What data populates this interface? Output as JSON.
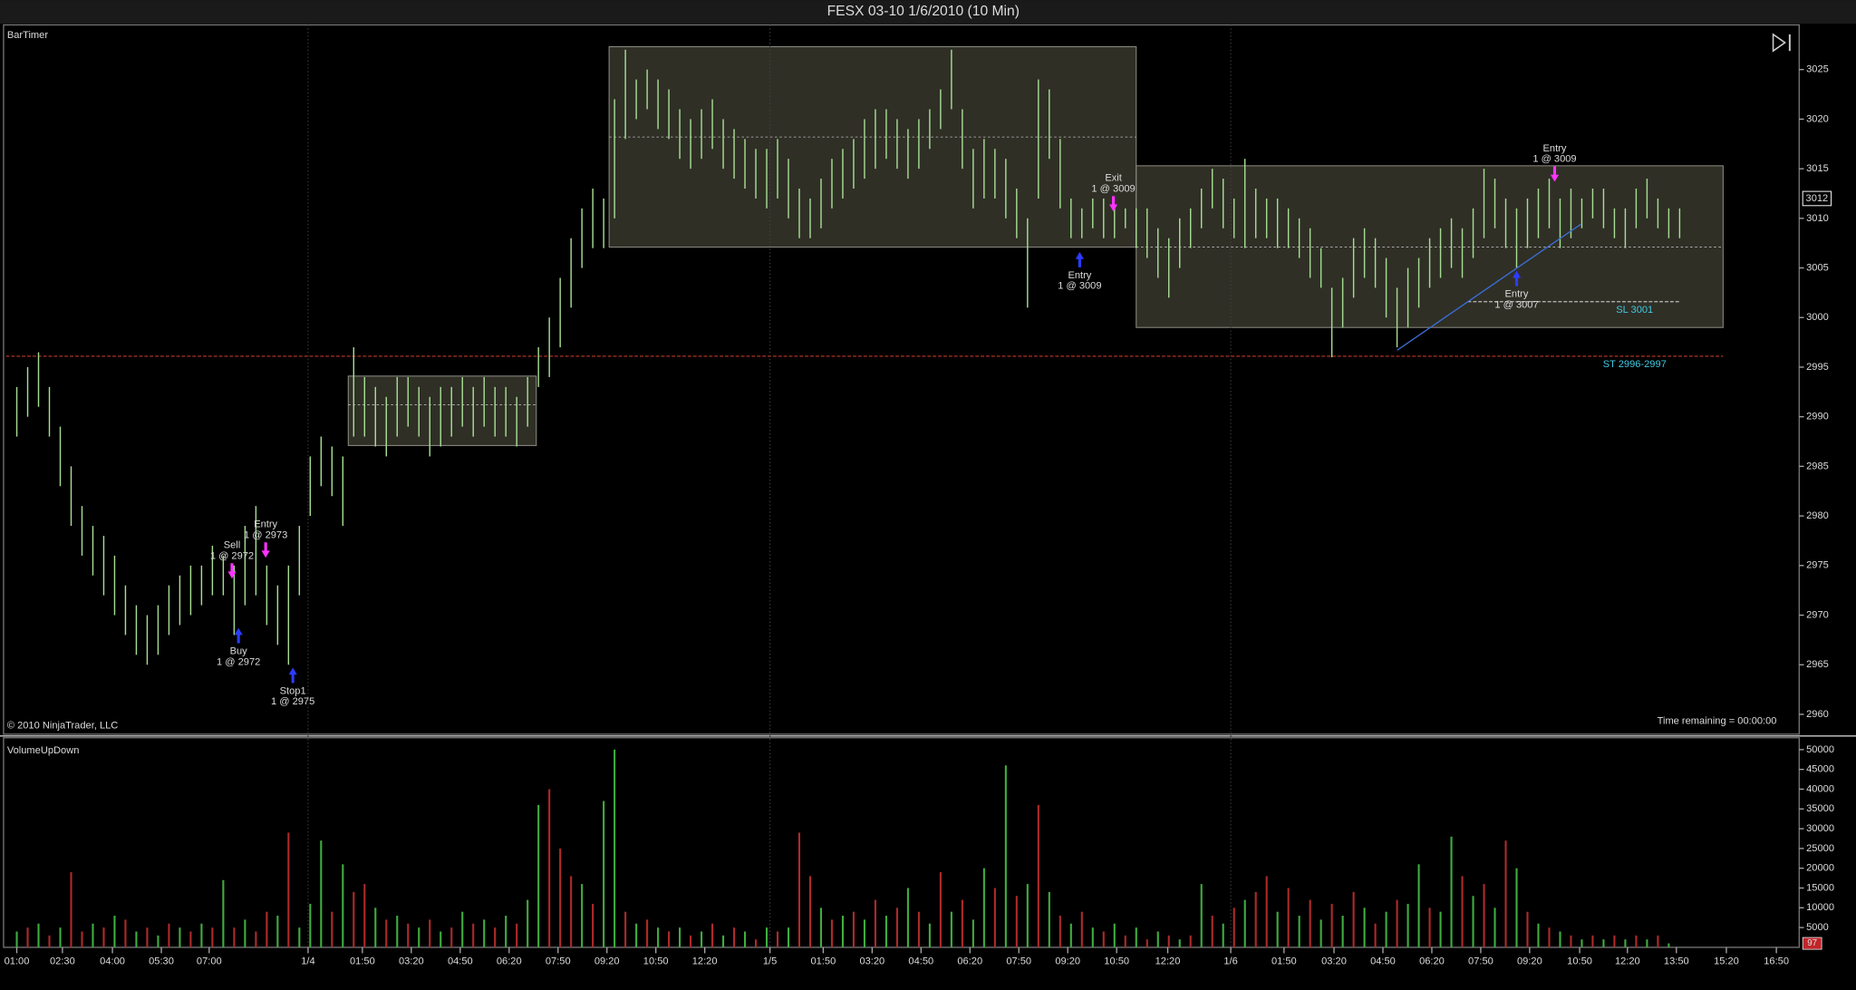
{
  "title": "FESX 03-10  1/6/2010 (10 Min)",
  "chart_data": [
    {
      "type": "ohlc",
      "indicator": "BarTimer",
      "copyright": "© 2010 NinjaTrader, LLC",
      "status": "Time remaining = 00:00:00",
      "color": "#a6dc92",
      "last_price": 3012,
      "xlim": [
        -1,
        164
      ],
      "ylim": [
        2958,
        3029.5
      ],
      "yticks": [
        2960,
        2965,
        2970,
        2975,
        2980,
        2985,
        2990,
        2995,
        3000,
        3005,
        3010,
        3015,
        3020,
        3025
      ],
      "low": [
        2988,
        2990,
        2991,
        2988,
        2983,
        2979,
        2976,
        2974,
        2972,
        2970,
        2968,
        2966,
        2965,
        2966,
        2968,
        2969,
        2970,
        2971,
        2972,
        2972,
        2968,
        2971,
        2972,
        2969,
        2967,
        2965,
        2972,
        2980,
        2983,
        2982,
        2979,
        2988,
        2988,
        2987,
        2986,
        2988,
        2989,
        2988,
        2986,
        2987,
        2988,
        2989,
        2988,
        2989,
        2988,
        2988,
        2987,
        2989,
        2993,
        2994,
        2997,
        3001,
        3005,
        3007,
        3007,
        3010,
        3018,
        3020,
        3021,
        3019,
        3018,
        3016,
        3015,
        3016,
        3017,
        3015,
        3014,
        3013,
        3012,
        3011,
        3012,
        3010,
        3008,
        3008,
        3009,
        3011,
        3012,
        3013,
        3014,
        3015,
        3016,
        3015,
        3014,
        3015,
        3017,
        3019,
        3021,
        3015,
        3011,
        3012,
        3012,
        3010,
        3008,
        3001,
        3012,
        3016,
        3011,
        3008,
        3008,
        3009,
        3008,
        3008,
        3009,
        3007,
        3006,
        3004,
        3002,
        3005,
        3007,
        3009,
        3011,
        3009,
        3008,
        3007,
        3008,
        3008,
        3007,
        3007,
        3006,
        3004,
        3003,
        2996,
        2999,
        3002,
        3004,
        3003,
        3000,
        2997,
        2999,
        3001,
        3003,
        3004,
        3005,
        3004,
        3006,
        3008,
        3009,
        3007,
        3005,
        3007,
        3008,
        3009,
        3007,
        3008,
        3009,
        3010,
        3009,
        3008,
        3007,
        3009,
        3010,
        3009,
        3008,
        3008
      ],
      "high": [
        2993,
        2995,
        2996.5,
        2993,
        2989,
        2985,
        2981,
        2979,
        2978,
        2976,
        2973,
        2971,
        2970,
        2971,
        2973,
        2974,
        2975,
        2975,
        2977,
        2976,
        2975,
        2979,
        2981,
        2975,
        2973,
        2975,
        2979,
        2986,
        2988,
        2987,
        2986,
        2997,
        2994,
        2993,
        2992,
        2994,
        2994,
        2993,
        2992,
        2993,
        2993,
        2994,
        2993,
        2994,
        2993,
        2993,
        2992,
        2994,
        2997,
        3000,
        3004,
        3008,
        3011,
        3013,
        3012,
        3022,
        3027,
        3024,
        3025,
        3024,
        3023,
        3021,
        3020,
        3021,
        3022,
        3020,
        3019,
        3018,
        3017,
        3017,
        3018,
        3016,
        3013,
        3012,
        3014,
        3016,
        3017,
        3018,
        3020,
        3021,
        3021,
        3020,
        3019,
        3020,
        3021,
        3023,
        3027,
        3021,
        3017,
        3018,
        3017,
        3016,
        3013,
        3010,
        3024,
        3023,
        3018,
        3012,
        3011,
        3012,
        3012,
        3011,
        3011,
        3011,
        3011,
        3009,
        3008,
        3010,
        3011,
        3013,
        3015,
        3014,
        3012,
        3016,
        3013,
        3012,
        3012,
        3011,
        3010,
        3009,
        3007,
        3003,
        3004,
        3008,
        3009,
        3008,
        3006,
        3003,
        3005,
        3006,
        3008,
        3009,
        3010,
        3009,
        3011,
        3015,
        3014,
        3012,
        3011,
        3012,
        3013,
        3014,
        3012,
        3013,
        3012,
        3013,
        3013,
        3011,
        3011,
        3013,
        3014,
        3012,
        3011,
        3011
      ],
      "zones": [
        {
          "x": [
            30.5,
            47.8
          ],
          "y": [
            2987.1,
            2994.1
          ],
          "mid": 2991.2
        },
        {
          "x": [
            54.5,
            103
          ],
          "y": [
            3007.1,
            3027.3
          ],
          "mid": 3018.2
        },
        {
          "x": [
            103,
            157
          ],
          "y": [
            2999,
            3015.3
          ],
          "mid": 3007.1
        }
      ],
      "trend_line": {
        "x": [
          127,
          143.9
        ],
        "y": [
          2996.7,
          3009.4
        ],
        "color": "#3a6fd8"
      },
      "levels": [
        {
          "value": 2996.1,
          "x": [
            -1,
            157
          ],
          "color": "#c0392b",
          "label": "ST 2996-2997"
        },
        {
          "value": 3001.6,
          "x": [
            133.5,
            153
          ],
          "color": "#bbbbbb",
          "label": "SL 3001"
        }
      ],
      "trades": [
        {
          "action": "Sell",
          "fill": "1 @ 2972",
          "x": 19.8,
          "price": 2974.4,
          "side": "sell"
        },
        {
          "action": "Entry",
          "fill": "1 @ 2973",
          "x": 22.9,
          "price": 2976.5,
          "side": "sell"
        },
        {
          "action": "Buy",
          "fill": "1 @ 2972",
          "x": 20.4,
          "price": 2968,
          "side": "buy"
        },
        {
          "action": "Stop1",
          "fill": "1 @ 2975",
          "x": 25.4,
          "price": 2964,
          "side": "buy"
        },
        {
          "action": "Exit",
          "fill": "1 @ 3009",
          "x": 100.9,
          "price": 3011.4,
          "side": "sell"
        },
        {
          "action": "Entry",
          "fill": "1 @ 3009",
          "x": 97.8,
          "price": 3005.9,
          "side": "buy"
        },
        {
          "action": "Entry",
          "fill": "1 @ 3009",
          "x": 141.5,
          "price": 3014.4,
          "side": "sell"
        },
        {
          "action": "Entry",
          "fill": "1 @ 3007",
          "x": 138,
          "price": 3004,
          "side": "buy"
        }
      ]
    },
    {
      "type": "bar",
      "indicator": "VolumeUpDown",
      "last_value": 97,
      "xlim": [
        -1,
        164
      ],
      "ylim": [
        0,
        53000
      ],
      "yticks": [
        5000,
        10000,
        15000,
        20000,
        25000,
        30000,
        35000,
        40000,
        45000,
        50000
      ],
      "xticks": [
        {
          "value": 0,
          "label": "01:00"
        },
        {
          "value": 4.2,
          "label": "02:30"
        },
        {
          "value": 8.8,
          "label": "04:00"
        },
        {
          "value": 13.3,
          "label": "05:30"
        },
        {
          "value": 17.7,
          "label": "07:00"
        },
        {
          "value": 26.8,
          "label": "1/4"
        },
        {
          "value": 31.8,
          "label": "01:50"
        },
        {
          "value": 36.3,
          "label": "03:20"
        },
        {
          "value": 40.8,
          "label": "04:50"
        },
        {
          "value": 45.3,
          "label": "06:20"
        },
        {
          "value": 49.8,
          "label": "07:50"
        },
        {
          "value": 54.3,
          "label": "09:20"
        },
        {
          "value": 58.8,
          "label": "10:50"
        },
        {
          "value": 63.3,
          "label": "12:20"
        },
        {
          "value": 69.3,
          "label": "1/5"
        },
        {
          "value": 74.2,
          "label": "01:50"
        },
        {
          "value": 78.7,
          "label": "03:20"
        },
        {
          "value": 83.2,
          "label": "04:50"
        },
        {
          "value": 87.7,
          "label": "06:20"
        },
        {
          "value": 92.2,
          "label": "07:50"
        },
        {
          "value": 96.7,
          "label": "09:20"
        },
        {
          "value": 101.2,
          "label": "10:50"
        },
        {
          "value": 105.9,
          "label": "12:20"
        },
        {
          "value": 111.7,
          "label": "1/6"
        },
        {
          "value": 116.6,
          "label": "01:50"
        },
        {
          "value": 121.2,
          "label": "03:20"
        },
        {
          "value": 125.7,
          "label": "04:50"
        },
        {
          "value": 130.2,
          "label": "06:20"
        },
        {
          "value": 134.7,
          "label": "07:50"
        },
        {
          "value": 139.2,
          "label": "09:20"
        },
        {
          "value": 143.8,
          "label": "10:50"
        },
        {
          "value": 148.2,
          "label": "12:20"
        },
        {
          "value": 152.7,
          "label": "13:50"
        },
        {
          "value": 157.3,
          "label": "15:20"
        },
        {
          "value": 161.9,
          "label": "16:50"
        }
      ],
      "values": [
        4000,
        5000,
        6000,
        3000,
        5000,
        19000,
        4000,
        6000,
        5000,
        8000,
        7000,
        4000,
        5000,
        3000,
        6000,
        5000,
        4000,
        6000,
        5000,
        17000,
        5000,
        7000,
        4000,
        9000,
        8000,
        29000,
        5000,
        11000,
        27000,
        9000,
        21000,
        14000,
        16000,
        10000,
        7000,
        8000,
        6000,
        5000,
        7000,
        4000,
        5000,
        9000,
        6000,
        7000,
        5000,
        8000,
        6000,
        12000,
        36000,
        40000,
        25000,
        18000,
        16000,
        11000,
        37000,
        50000,
        9000,
        6000,
        7000,
        5000,
        4000,
        5000,
        3000,
        4000,
        6000,
        3000,
        5000,
        4000,
        2000,
        5000,
        4000,
        5000,
        29000,
        18000,
        10000,
        7000,
        8000,
        9000,
        7000,
        12000,
        8000,
        10000,
        15000,
        9000,
        6000,
        19000,
        9000,
        12000,
        7000,
        20000,
        15000,
        46000,
        13000,
        16000,
        36000,
        14000,
        8000,
        6000,
        9000,
        5000,
        4000,
        6000,
        3000,
        5000,
        2000,
        4000,
        3000,
        2000,
        3000,
        16000,
        8000,
        6000,
        10000,
        12000,
        14000,
        18000,
        9000,
        15000,
        8000,
        12000,
        7000,
        11000,
        8000,
        14000,
        10000,
        6000,
        9000,
        12000,
        11000,
        21000,
        10000,
        9000,
        28000,
        18000,
        13000,
        16000,
        10000,
        27000,
        20000,
        9000,
        6000,
        5000,
        4000,
        3000,
        2000,
        3000,
        2000,
        3000,
        2000,
        3000,
        2000,
        3000,
        1000,
        97
      ],
      "colors": [
        "#3fae3f",
        "#b02a2a",
        "#3fae3f",
        "#b02a2a",
        "#3fae3f",
        "#b02a2a",
        "#b02a2a",
        "#3fae3f",
        "#b02a2a",
        "#3fae3f",
        "#b02a2a",
        "#3fae3f",
        "#b02a2a",
        "#3fae3f",
        "#b02a2a",
        "#3fae3f",
        "#b02a2a",
        "#3fae3f",
        "#b02a2a",
        "#3fae3f",
        "#b02a2a",
        "#3fae3f",
        "#b02a2a",
        "#b02a2a",
        "#3fae3f",
        "#b02a2a",
        "#3fae3f",
        "#3fae3f",
        "#3fae3f",
        "#b02a2a",
        "#3fae3f",
        "#b02a2a",
        "#b02a2a",
        "#3fae3f",
        "#b02a2a",
        "#3fae3f",
        "#b02a2a",
        "#3fae3f",
        "#b02a2a",
        "#3fae3f",
        "#b02a2a",
        "#3fae3f",
        "#b02a2a",
        "#3fae3f",
        "#b02a2a",
        "#3fae3f",
        "#b02a2a",
        "#3fae3f",
        "#3fae3f",
        "#b02a2a",
        "#b02a2a",
        "#b02a2a",
        "#3fae3f",
        "#b02a2a",
        "#3fae3f",
        "#3fae3f",
        "#b02a2a",
        "#3fae3f",
        "#b02a2a",
        "#3fae3f",
        "#b02a2a",
        "#3fae3f",
        "#b02a2a",
        "#3fae3f",
        "#b02a2a",
        "#3fae3f",
        "#b02a2a",
        "#3fae3f",
        "#b02a2a",
        "#3fae3f",
        "#b02a2a",
        "#3fae3f",
        "#b02a2a",
        "#b02a2a",
        "#3fae3f",
        "#b02a2a",
        "#3fae3f",
        "#b02a2a",
        "#3fae3f",
        "#b02a2a",
        "#3fae3f",
        "#b02a2a",
        "#3fae3f",
        "#b02a2a",
        "#3fae3f",
        "#b02a2a",
        "#3fae3f",
        "#b02a2a",
        "#3fae3f",
        "#3fae3f",
        "#b02a2a",
        "#3fae3f",
        "#b02a2a",
        "#3fae3f",
        "#b02a2a",
        "#3fae3f",
        "#b02a2a",
        "#3fae3f",
        "#b02a2a",
        "#3fae3f",
        "#b02a2a",
        "#3fae3f",
        "#b02a2a",
        "#3fae3f",
        "#b02a2a",
        "#3fae3f",
        "#b02a2a",
        "#3fae3f",
        "#b02a2a",
        "#3fae3f",
        "#b02a2a",
        "#3fae3f",
        "#b02a2a",
        "#3fae3f",
        "#b02a2a",
        "#b02a2a",
        "#3fae3f",
        "#b02a2a",
        "#3fae3f",
        "#b02a2a",
        "#3fae3f",
        "#b02a2a",
        "#3fae3f",
        "#b02a2a",
        "#3fae3f",
        "#b02a2a",
        "#3fae3f",
        "#b02a2a",
        "#3fae3f",
        "#3fae3f",
        "#b02a2a",
        "#3fae3f",
        "#3fae3f",
        "#b02a2a",
        "#3fae3f",
        "#b02a2a",
        "#3fae3f",
        "#b02a2a",
        "#3fae3f",
        "#b02a2a",
        "#3fae3f",
        "#b02a2a",
        "#3fae3f",
        "#b02a2a",
        "#3fae3f",
        "#b02a2a",
        "#3fae3f",
        "#b02a2a",
        "#3fae3f",
        "#b02a2a",
        "#3fae3f",
        "#b02a2a",
        "#3fae3f",
        "#3fae3f"
      ]
    }
  ]
}
